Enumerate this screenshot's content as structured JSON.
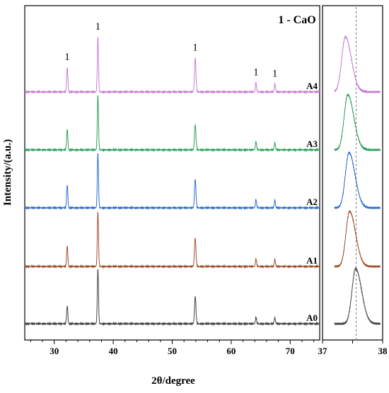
{
  "chart_data": [
    {
      "type": "line",
      "panel": "main",
      "title": "",
      "xlabel": "2θ/degree",
      "ylabel": "Intensity/(a.u.)",
      "xlim": [
        25,
        75
      ],
      "xticks": [
        30,
        40,
        50,
        60,
        70
      ],
      "yticks": [],
      "grid": false,
      "annotation": "1 - CaO",
      "peak_label": "1",
      "peak_positions": [
        32.2,
        37.4,
        53.9,
        64.2,
        67.4
      ],
      "series": [
        {
          "name": "A4",
          "color": "#c77fd6",
          "peaks": [
            32.2,
            37.4,
            53.9,
            64.2,
            67.4
          ],
          "rel_heights": [
            0.45,
            1.0,
            0.62,
            0.17,
            0.15
          ]
        },
        {
          "name": "A3",
          "color": "#2fa05d",
          "peaks": [
            32.2,
            37.4,
            53.9,
            64.2,
            67.4
          ],
          "rel_heights": [
            0.38,
            1.0,
            0.46,
            0.15,
            0.13
          ]
        },
        {
          "name": "A2",
          "color": "#2e6fd0",
          "peaks": [
            32.2,
            37.4,
            53.9,
            64.2,
            67.4
          ],
          "rel_heights": [
            0.42,
            1.0,
            0.52,
            0.15,
            0.14
          ]
        },
        {
          "name": "A1",
          "color": "#a0522d",
          "peaks": [
            32.2,
            37.4,
            53.9,
            64.2,
            67.4
          ],
          "rel_heights": [
            0.38,
            1.0,
            0.52,
            0.14,
            0.13
          ]
        },
        {
          "name": "A0",
          "color": "#444444",
          "peaks": [
            32.2,
            37.4,
            53.9,
            64.2,
            67.4
          ],
          "rel_heights": [
            0.33,
            1.0,
            0.5,
            0.12,
            0.11
          ]
        }
      ]
    },
    {
      "type": "line",
      "panel": "zoom",
      "title": "",
      "xlim": [
        37,
        38
      ],
      "xticks": [
        37,
        38
      ],
      "reference_line_x": 37.56,
      "series": [
        {
          "name": "A4",
          "color": "#c77fd6",
          "peak_x": 37.38
        },
        {
          "name": "A3",
          "color": "#2fa05d",
          "peak_x": 37.42
        },
        {
          "name": "A2",
          "color": "#2e6fd0",
          "peak_x": 37.44
        },
        {
          "name": "A1",
          "color": "#a0522d",
          "peak_x": 37.45
        },
        {
          "name": "A0",
          "color": "#444444",
          "peak_x": 37.55
        }
      ]
    }
  ]
}
